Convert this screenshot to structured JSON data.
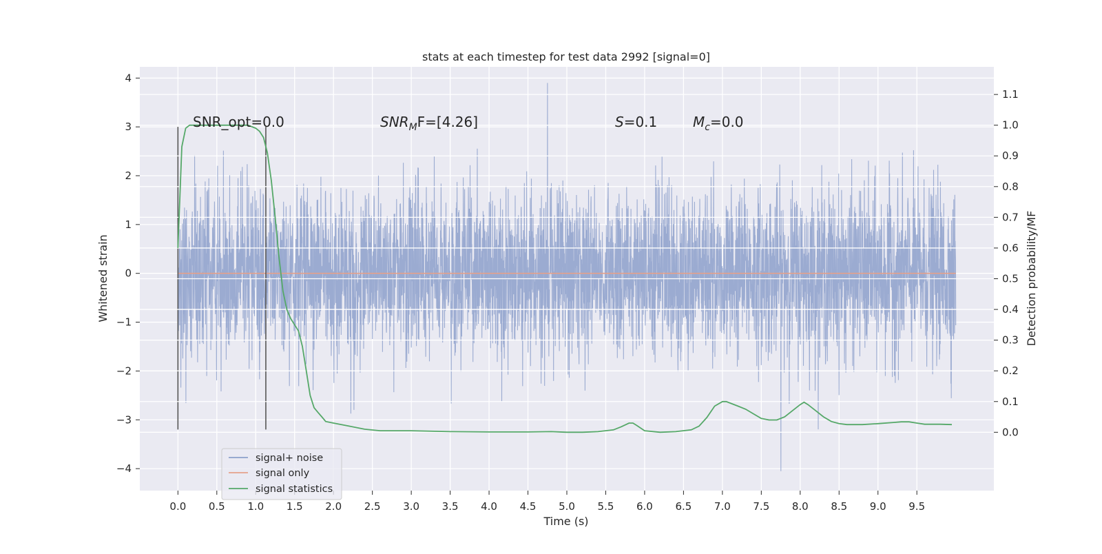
{
  "chart_data": {
    "type": "line",
    "title": "stats at each timestep for test data 2992 [signal=0]",
    "xlabel": "Time (s)",
    "ylabel_left": "Whitened strain",
    "ylabel_right": "Detection probability/MF",
    "x_range": [
      0,
      10
    ],
    "xlim": [
      -0.49,
      10.49
    ],
    "ylim_left": [
      -4.45,
      4.23
    ],
    "ylim_right": [
      -0.19,
      1.19
    ],
    "x_ticks": [
      "0.0",
      "0.5",
      "1.0",
      "1.5",
      "2.0",
      "2.5",
      "3.0",
      "3.5",
      "4.0",
      "4.5",
      "5.0",
      "5.5",
      "6.0",
      "6.5",
      "7.0",
      "7.5",
      "8.0",
      "8.5",
      "9.0",
      "9.5"
    ],
    "y_ticks_left": [
      "4",
      "3",
      "2",
      "1",
      "0",
      "−1",
      "−2",
      "−3",
      "−4"
    ],
    "y_ticks_right": [
      "1.1",
      "1.0",
      "0.9",
      "0.8",
      "0.7",
      "0.6",
      "0.5",
      "0.4",
      "0.3",
      "0.2",
      "0.1",
      "0.0"
    ],
    "grid": true,
    "legend_position": "lower-left",
    "annotations": {
      "snr_opt": "SNR_opt=0.0",
      "snr_mf_prefix": "SNR",
      "snr_mf_sub": "M",
      "snr_mf_rest": "F=[4.26]",
      "s_prefix": "S",
      "s_rest": "=0.1",
      "mc_prefix": "M",
      "mc_sub": "c",
      "mc_rest": "=0.0"
    },
    "markers_x": [
      0.0,
      1.13
    ],
    "series": [
      {
        "name": "signal+ noise",
        "color": "#8da0cb",
        "style": "dense-noise",
        "sigma": 0.85,
        "y_extremes": [
          3.9,
          -4.05
        ]
      },
      {
        "name": "signal only",
        "color": "#e5a08a",
        "x": [
          0.0,
          10.0
        ],
        "y": [
          0.0,
          0.0
        ]
      },
      {
        "name": "signal statistics",
        "color": "#55a868",
        "axis": "right",
        "x": [
          0.0,
          0.05,
          0.1,
          0.15,
          0.2,
          0.3,
          0.5,
          0.7,
          0.9,
          1.0,
          1.05,
          1.1,
          1.15,
          1.2,
          1.25,
          1.3,
          1.35,
          1.4,
          1.45,
          1.5,
          1.55,
          1.6,
          1.65,
          1.7,
          1.75,
          1.8,
          1.85,
          1.9,
          2.0,
          2.2,
          2.4,
          2.6,
          2.8,
          3.0,
          3.5,
          4.0,
          4.5,
          4.8,
          5.0,
          5.2,
          5.4,
          5.6,
          5.7,
          5.8,
          5.85,
          5.9,
          6.0,
          6.2,
          6.4,
          6.6,
          6.7,
          6.8,
          6.9,
          7.0,
          7.05,
          7.1,
          7.2,
          7.3,
          7.4,
          7.5,
          7.6,
          7.7,
          7.8,
          7.9,
          8.0,
          8.05,
          8.1,
          8.2,
          8.3,
          8.4,
          8.5,
          8.6,
          8.8,
          9.0,
          9.2,
          9.3,
          9.4,
          9.5,
          9.6,
          9.8,
          9.95
        ],
        "y": [
          0.6,
          0.93,
          0.99,
          1.0,
          1.0,
          1.0,
          1.0,
          1.0,
          1.0,
          0.99,
          0.98,
          0.96,
          0.91,
          0.82,
          0.7,
          0.57,
          0.46,
          0.4,
          0.37,
          0.35,
          0.33,
          0.28,
          0.2,
          0.12,
          0.08,
          0.065,
          0.05,
          0.035,
          0.03,
          0.02,
          0.01,
          0.005,
          0.005,
          0.005,
          0.002,
          0.001,
          0.001,
          0.002,
          0.0,
          0.0,
          0.002,
          0.008,
          0.018,
          0.03,
          0.03,
          0.022,
          0.005,
          0.0,
          0.002,
          0.008,
          0.02,
          0.048,
          0.085,
          0.1,
          0.1,
          0.095,
          0.085,
          0.075,
          0.06,
          0.045,
          0.04,
          0.04,
          0.05,
          0.07,
          0.09,
          0.098,
          0.09,
          0.07,
          0.05,
          0.035,
          0.028,
          0.025,
          0.025,
          0.028,
          0.032,
          0.034,
          0.034,
          0.03,
          0.026,
          0.026,
          0.025
        ]
      }
    ]
  }
}
